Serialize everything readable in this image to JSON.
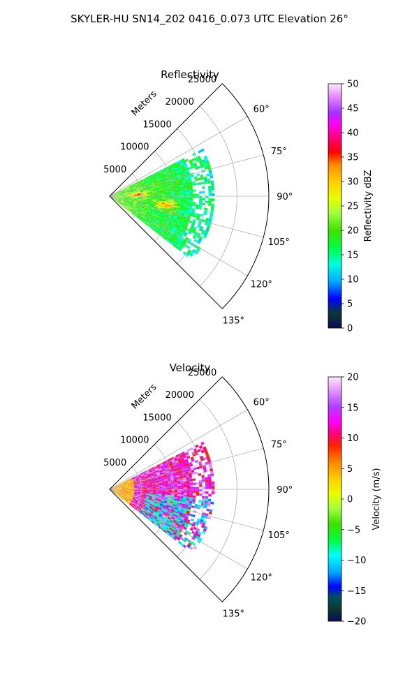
{
  "figure_title": "SKYLER-HU  SN14_202  0416_0.073 UTC Elevation 26°",
  "chart_data": [
    {
      "type": "heatmap",
      "projection": "polar-sector",
      "title": "Reflectivity",
      "radial_axis_label": "Meters",
      "radial_ticks": [
        "5000",
        "10000",
        "15000",
        "20000",
        "25000"
      ],
      "radial_tick_values": [
        5000,
        10000,
        15000,
        20000,
        25000
      ],
      "radial_range": [
        0,
        25000
      ],
      "angle_range_deg": [
        45,
        135
      ],
      "angle_ticks": [
        "60°",
        "75°",
        "90°",
        "105°",
        "120°",
        "135°"
      ],
      "angle_tick_values": [
        60,
        75,
        90,
        105,
        120,
        135
      ],
      "grid": true,
      "colorbar": {
        "label": "Reflectivity dBZ",
        "range": [
          0,
          50
        ],
        "ticks": [
          "0",
          "5",
          "10",
          "15",
          "20",
          "25",
          "30",
          "35",
          "40",
          "45",
          "50"
        ],
        "tick_values": [
          0,
          5,
          10,
          15,
          20,
          25,
          30,
          35,
          40,
          45,
          50
        ]
      },
      "data_extent": {
        "range_max_m": 16500,
        "angle_min_deg": 63,
        "angle_max_deg": 128,
        "typical_value": 18,
        "cores": [
          {
            "range_m": 4500,
            "angle_deg": 87,
            "value": 34
          },
          {
            "range_m": 9000,
            "angle_deg": 99,
            "value": 33
          }
        ]
      }
    },
    {
      "type": "heatmap",
      "projection": "polar-sector",
      "title": "Velocity",
      "radial_axis_label": "Meters",
      "radial_ticks": [
        "5000",
        "10000",
        "15000",
        "20000",
        "25000"
      ],
      "radial_tick_values": [
        5000,
        10000,
        15000,
        20000,
        25000
      ],
      "radial_range": [
        0,
        25000
      ],
      "angle_range_deg": [
        45,
        135
      ],
      "angle_ticks": [
        "60°",
        "75°",
        "90°",
        "105°",
        "120°",
        "135°"
      ],
      "angle_tick_values": [
        60,
        75,
        90,
        105,
        120,
        135
      ],
      "grid": true,
      "colorbar": {
        "label": "Velocity (m/s)",
        "range": [
          -20,
          20
        ],
        "ticks": [
          "−20",
          "−15",
          "−10",
          "−5",
          "0",
          "5",
          "10",
          "15",
          "20"
        ],
        "tick_values": [
          -20,
          -15,
          -10,
          -5,
          0,
          5,
          10,
          15,
          20
        ]
      },
      "data_extent": {
        "range_max_m": 16500,
        "angle_min_deg": 63,
        "angle_max_deg": 128,
        "typical_value": 13
      }
    }
  ]
}
